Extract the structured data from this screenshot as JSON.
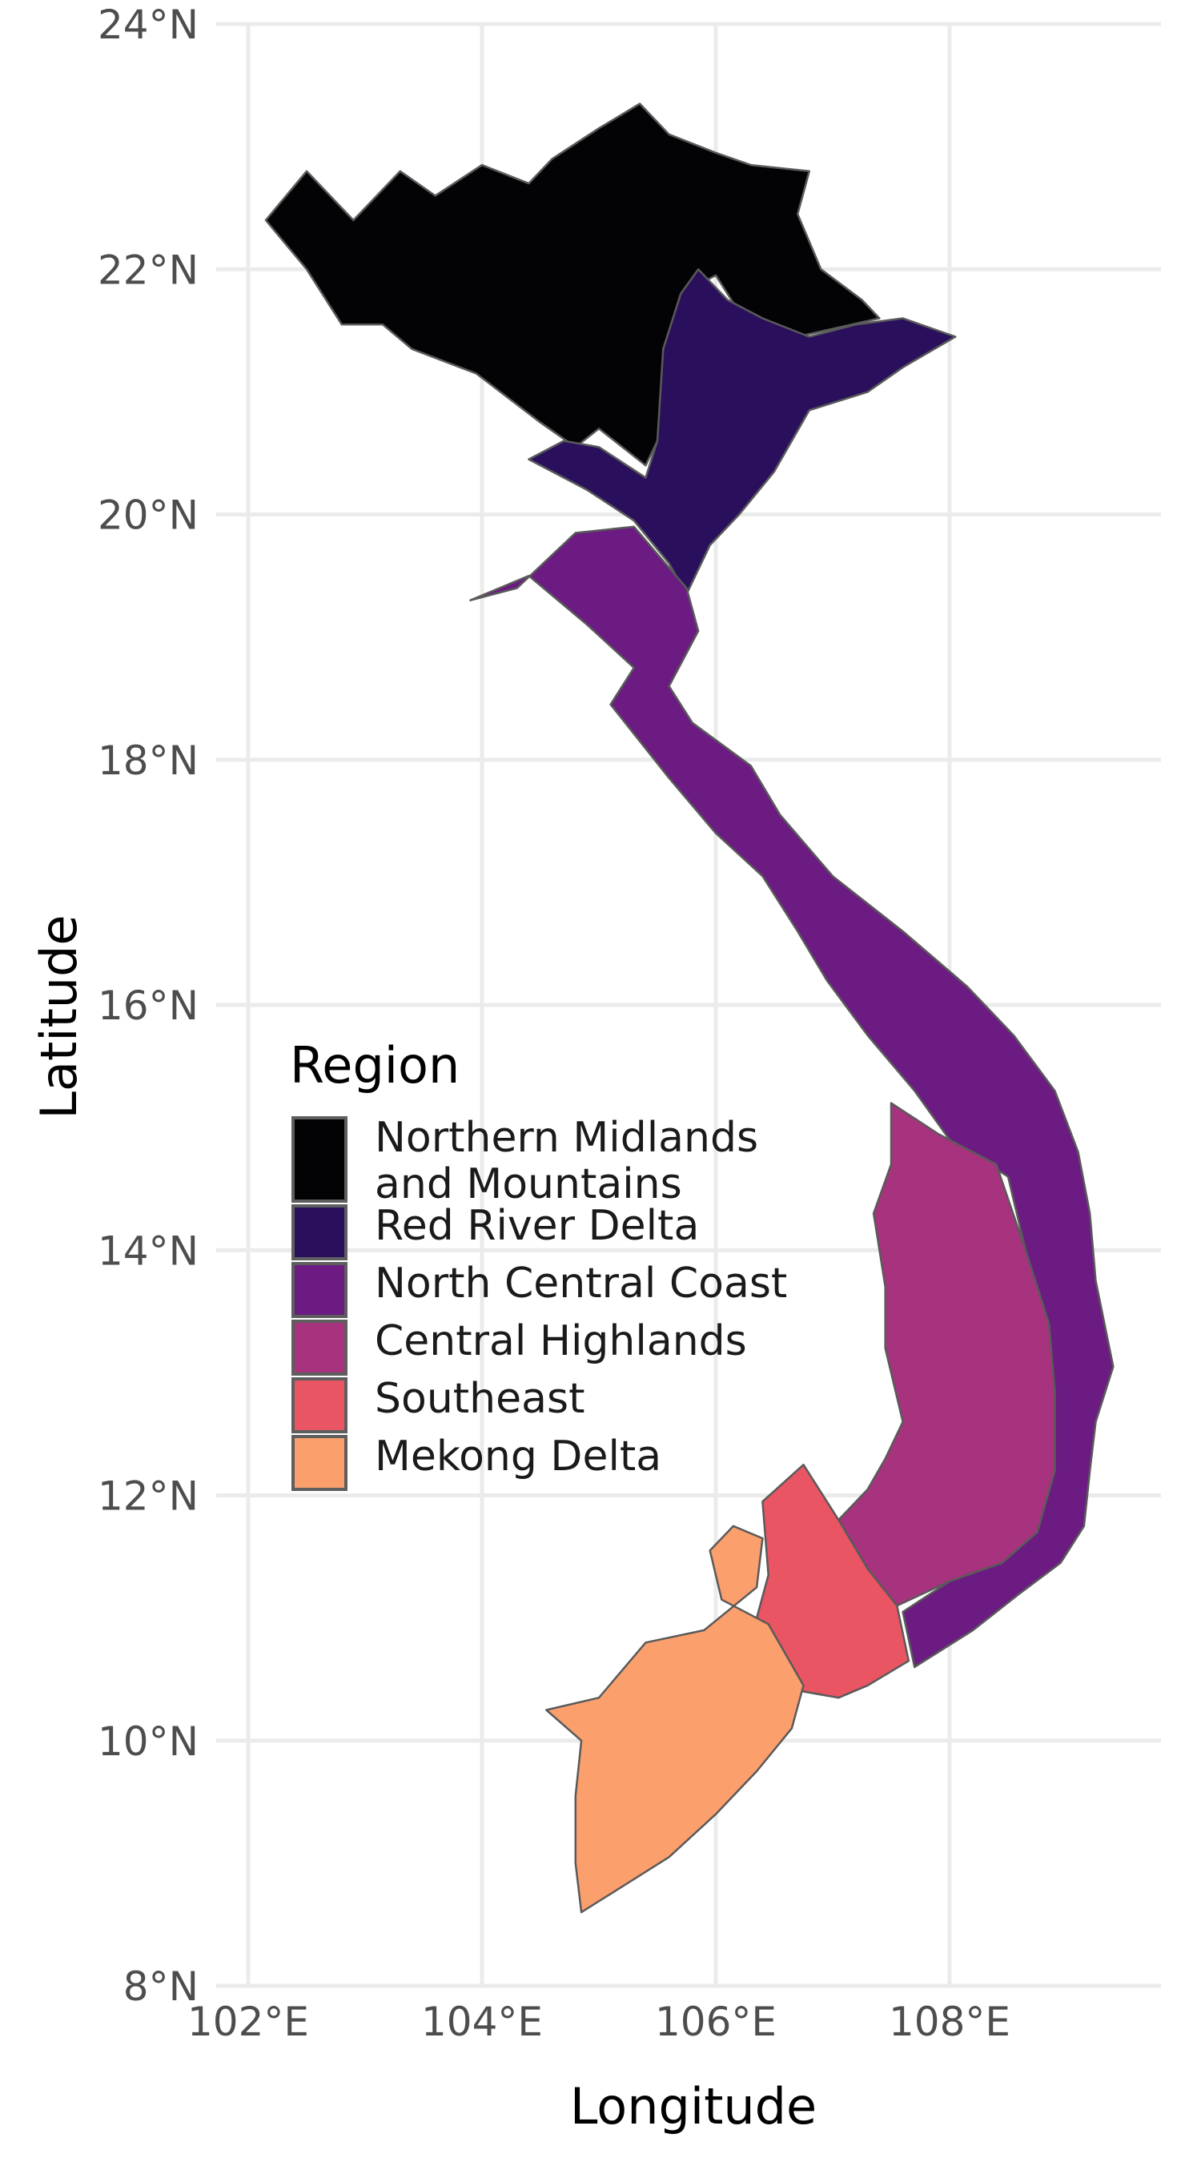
{
  "chart_data": {
    "type": "choropleth-map",
    "xlabel": "Longitude",
    "ylabel": "Latitude",
    "xlim": [
      101.8,
      109.8
    ],
    "ylim": [
      8,
      24
    ],
    "x_ticks": [
      102,
      104,
      106,
      108
    ],
    "x_tick_labels": [
      "102°E",
      "104°E",
      "106°E",
      "108°E"
    ],
    "y_ticks": [
      8,
      10,
      12,
      14,
      16,
      18,
      20,
      22,
      24
    ],
    "y_tick_labels": [
      "8°N",
      "10°N",
      "12°N",
      "14°N",
      "16°N",
      "18°N",
      "20°N",
      "22°N",
      "24°N"
    ],
    "grid": true,
    "legend": {
      "title": "Region",
      "placement": "inside-left-middle",
      "entries": [
        {
          "label_lines": [
            "Northern Midlands",
            "and Mountains"
          ],
          "color": "#030306"
        },
        {
          "label_lines": [
            "Red River Delta"
          ],
          "color": "#2a105c"
        },
        {
          "label_lines": [
            "North Central Coast"
          ],
          "color": "#6b1b81"
        },
        {
          "label_lines": [
            "Central Highlands"
          ],
          "color": "#a7327e"
        },
        {
          "label_lines": [
            "Southeast"
          ],
          "color": "#e95562"
        },
        {
          "label_lines": [
            "Mekong Delta"
          ],
          "color": "#fb9f6d"
        }
      ]
    },
    "regions": [
      {
        "color_index": 0,
        "polygon": [
          [
            102.15,
            22.4
          ],
          [
            102.5,
            22.8
          ],
          [
            102.9,
            22.4
          ],
          [
            103.3,
            22.8
          ],
          [
            103.6,
            22.6
          ],
          [
            104.0,
            22.85
          ],
          [
            104.4,
            22.7
          ],
          [
            104.6,
            22.9
          ],
          [
            105.0,
            23.15
          ],
          [
            105.35,
            23.35
          ],
          [
            105.6,
            23.1
          ],
          [
            106.0,
            22.95
          ],
          [
            106.3,
            22.85
          ],
          [
            106.8,
            22.8
          ],
          [
            106.7,
            22.45
          ],
          [
            106.9,
            22.0
          ],
          [
            107.25,
            21.75
          ],
          [
            107.4,
            21.6
          ],
          [
            106.7,
            21.45
          ],
          [
            106.2,
            21.65
          ],
          [
            106.0,
            21.95
          ],
          [
            105.8,
            21.85
          ],
          [
            105.6,
            21.35
          ],
          [
            105.5,
            20.6
          ],
          [
            105.4,
            20.4
          ],
          [
            105.0,
            20.7
          ],
          [
            104.8,
            20.55
          ],
          [
            104.5,
            20.75
          ],
          [
            103.95,
            21.15
          ],
          [
            103.4,
            21.35
          ],
          [
            103.15,
            21.55
          ],
          [
            102.8,
            21.55
          ],
          [
            102.5,
            22.0
          ]
        ]
      },
      {
        "color_index": 1,
        "polygon": [
          [
            105.55,
            21.35
          ],
          [
            105.7,
            21.8
          ],
          [
            105.85,
            22.0
          ],
          [
            106.1,
            21.75
          ],
          [
            106.4,
            21.6
          ],
          [
            106.8,
            21.45
          ],
          [
            107.2,
            21.55
          ],
          [
            107.6,
            21.6
          ],
          [
            108.05,
            21.45
          ],
          [
            107.6,
            21.2
          ],
          [
            107.3,
            21.0
          ],
          [
            106.8,
            20.85
          ],
          [
            106.5,
            20.35
          ],
          [
            106.2,
            20.0
          ],
          [
            105.95,
            19.75
          ],
          [
            105.75,
            19.35
          ],
          [
            105.6,
            19.6
          ],
          [
            105.3,
            19.95
          ],
          [
            104.9,
            20.2
          ],
          [
            104.4,
            20.45
          ],
          [
            104.7,
            20.6
          ],
          [
            105.0,
            20.55
          ],
          [
            105.4,
            20.3
          ],
          [
            105.5,
            20.6
          ]
        ]
      },
      {
        "color_index": 2,
        "polygon": [
          [
            103.9,
            19.3
          ],
          [
            104.3,
            19.4
          ],
          [
            104.8,
            19.85
          ],
          [
            105.3,
            19.9
          ],
          [
            105.75,
            19.4
          ],
          [
            105.85,
            19.05
          ],
          [
            105.6,
            18.6
          ],
          [
            105.8,
            18.3
          ],
          [
            106.3,
            17.95
          ],
          [
            106.55,
            17.55
          ],
          [
            107.0,
            17.05
          ],
          [
            107.6,
            16.6
          ],
          [
            108.15,
            16.15
          ],
          [
            108.55,
            15.75
          ],
          [
            108.9,
            15.3
          ],
          [
            109.1,
            14.8
          ],
          [
            109.2,
            14.3
          ],
          [
            109.25,
            13.75
          ],
          [
            109.4,
            13.05
          ],
          [
            109.25,
            12.6
          ],
          [
            109.2,
            12.2
          ],
          [
            109.15,
            11.75
          ],
          [
            108.95,
            11.45
          ],
          [
            108.6,
            11.2
          ],
          [
            108.2,
            10.9
          ],
          [
            107.7,
            10.6
          ],
          [
            107.6,
            11.05
          ],
          [
            108.0,
            11.3
          ],
          [
            108.45,
            11.45
          ],
          [
            108.75,
            11.7
          ],
          [
            108.9,
            12.2
          ],
          [
            108.9,
            12.85
          ],
          [
            108.85,
            13.4
          ],
          [
            108.65,
            14.0
          ],
          [
            108.5,
            14.6
          ],
          [
            108.0,
            14.9
          ],
          [
            107.7,
            15.3
          ],
          [
            107.3,
            15.75
          ],
          [
            106.95,
            16.2
          ],
          [
            106.7,
            16.6
          ],
          [
            106.4,
            17.05
          ],
          [
            106.0,
            17.4
          ],
          [
            105.6,
            17.85
          ],
          [
            105.1,
            18.45
          ],
          [
            105.3,
            18.75
          ],
          [
            104.9,
            19.1
          ],
          [
            104.4,
            19.5
          ]
        ]
      },
      {
        "color_index": 3,
        "polygon": [
          [
            107.5,
            15.2
          ],
          [
            107.9,
            14.95
          ],
          [
            108.4,
            14.7
          ],
          [
            108.65,
            14.0
          ],
          [
            108.85,
            13.4
          ],
          [
            108.9,
            12.85
          ],
          [
            108.9,
            12.2
          ],
          [
            108.75,
            11.7
          ],
          [
            108.45,
            11.45
          ],
          [
            108.0,
            11.3
          ],
          [
            107.55,
            11.1
          ],
          [
            107.3,
            11.4
          ],
          [
            107.05,
            11.8
          ],
          [
            107.3,
            12.05
          ],
          [
            107.45,
            12.3
          ],
          [
            107.6,
            12.6
          ],
          [
            107.45,
            13.2
          ],
          [
            107.45,
            13.7
          ],
          [
            107.35,
            14.3
          ],
          [
            107.5,
            14.7
          ]
        ]
      },
      {
        "color_index": 4,
        "polygon": [
          [
            106.4,
            11.95
          ],
          [
            106.75,
            12.25
          ],
          [
            107.05,
            11.8
          ],
          [
            107.3,
            11.4
          ],
          [
            107.55,
            11.1
          ],
          [
            107.65,
            10.65
          ],
          [
            107.3,
            10.45
          ],
          [
            107.05,
            10.35
          ],
          [
            106.75,
            10.4
          ],
          [
            106.5,
            10.75
          ],
          [
            106.35,
            11.0
          ],
          [
            106.45,
            11.35
          ]
        ]
      },
      {
        "color_index": 5,
        "polygon": [
          [
            105.0,
            10.35
          ],
          [
            105.4,
            10.8
          ],
          [
            105.9,
            10.9
          ],
          [
            106.35,
            11.25
          ],
          [
            106.4,
            11.65
          ],
          [
            106.15,
            11.75
          ],
          [
            105.95,
            11.55
          ],
          [
            106.05,
            11.15
          ],
          [
            106.45,
            10.95
          ],
          [
            106.75,
            10.45
          ],
          [
            106.65,
            10.1
          ],
          [
            106.35,
            9.75
          ],
          [
            106.0,
            9.4
          ],
          [
            105.6,
            9.05
          ],
          [
            105.1,
            8.75
          ],
          [
            104.85,
            8.6
          ],
          [
            104.8,
            9.0
          ],
          [
            104.8,
            9.55
          ],
          [
            104.85,
            10.0
          ],
          [
            104.55,
            10.25
          ]
        ]
      }
    ]
  }
}
